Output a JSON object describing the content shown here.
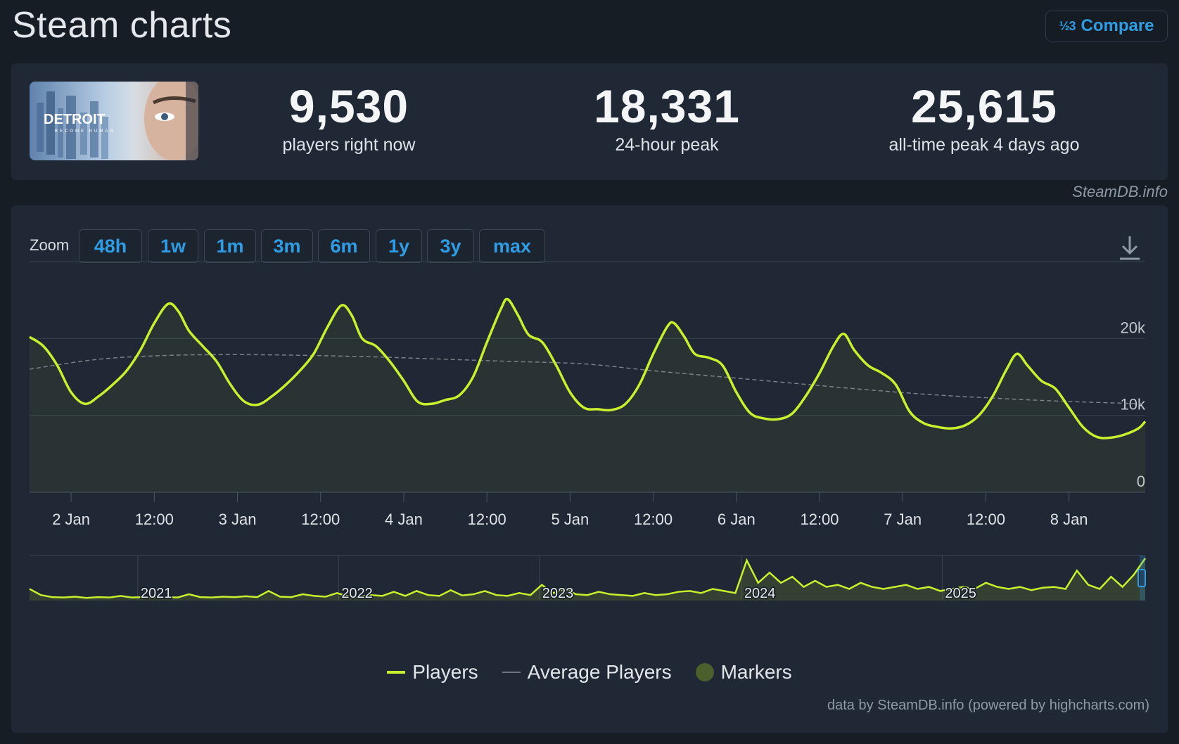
{
  "page": {
    "title": "Steam charts",
    "compare_label": "Compare",
    "compare_icon": "fraction-compare-icon",
    "compare_icon_text": "½3"
  },
  "game": {
    "logo_text": "DETROIT",
    "logo_subtext": "BECOME HUMAN"
  },
  "stats": [
    {
      "value": "9,530",
      "label": "players right now"
    },
    {
      "value": "18,331",
      "label": "24-hour peak"
    },
    {
      "value": "25,615",
      "label": "all-time peak 4 days ago"
    }
  ],
  "credit_top": "SteamDB.info",
  "zoom": {
    "label": "Zoom",
    "options": [
      "48h",
      "1w",
      "1m",
      "3m",
      "6m",
      "1y",
      "3y",
      "max"
    ]
  },
  "legend": [
    {
      "label": "Players",
      "color": "#c8f02c"
    },
    {
      "label": "Average Players",
      "color": "#8f979f"
    },
    {
      "label": "Markers",
      "color": "#4a5f2c"
    }
  ],
  "credit_bottom": "data by SteamDB.info (powered by highcharts.com)",
  "colors": {
    "accent": "#2f9de4",
    "players_line": "#c8f02c",
    "average_line": "#8f979f",
    "background": "#171d25",
    "panel": "#1f2834"
  },
  "chart_data": {
    "type": "line",
    "x_unit": "hours since 1 Jan 18:00",
    "x_range": [
      0,
      161
    ],
    "ylim": [
      0,
      30000
    ],
    "y_ticks": [
      0,
      10000,
      20000
    ],
    "y_tick_labels": [
      "0",
      "10k",
      "20k"
    ],
    "x_tick_labels": [
      {
        "x": 6,
        "label": "2 Jan"
      },
      {
        "x": 18,
        "label": "12:00"
      },
      {
        "x": 30,
        "label": "3 Jan"
      },
      {
        "x": 42,
        "label": "12:00"
      },
      {
        "x": 54,
        "label": "4 Jan"
      },
      {
        "x": 66,
        "label": "12:00"
      },
      {
        "x": 78,
        "label": "5 Jan"
      },
      {
        "x": 90,
        "label": "12:00"
      },
      {
        "x": 102,
        "label": "6 Jan"
      },
      {
        "x": 114,
        "label": "12:00"
      },
      {
        "x": 126,
        "label": "7 Jan"
      },
      {
        "x": 138,
        "label": "12:00"
      },
      {
        "x": 150,
        "label": "8 Jan"
      }
    ],
    "series": [
      {
        "name": "Players",
        "points": [
          [
            0,
            20200
          ],
          [
            2,
            19000
          ],
          [
            4,
            16500
          ],
          [
            6,
            13000
          ],
          [
            8,
            11500
          ],
          [
            10,
            12500
          ],
          [
            12,
            14000
          ],
          [
            14,
            15800
          ],
          [
            16,
            18500
          ],
          [
            18,
            22000
          ],
          [
            20,
            24500
          ],
          [
            21.5,
            23500
          ],
          [
            23,
            21000
          ],
          [
            25,
            19000
          ],
          [
            27,
            17000
          ],
          [
            29,
            14000
          ],
          [
            31,
            11800
          ],
          [
            33,
            11400
          ],
          [
            35,
            12500
          ],
          [
            37,
            14000
          ],
          [
            39,
            15800
          ],
          [
            41,
            18000
          ],
          [
            43,
            21500
          ],
          [
            45,
            24300
          ],
          [
            46.5,
            23000
          ],
          [
            48,
            20000
          ],
          [
            50,
            19000
          ],
          [
            52,
            17000
          ],
          [
            54,
            14500
          ],
          [
            56,
            11800
          ],
          [
            58,
            11500
          ],
          [
            60,
            12000
          ],
          [
            62,
            12600
          ],
          [
            64,
            15000
          ],
          [
            66,
            19500
          ],
          [
            68,
            23800
          ],
          [
            69,
            25100
          ],
          [
            70.5,
            23000
          ],
          [
            72,
            20500
          ],
          [
            74,
            19500
          ],
          [
            76,
            16500
          ],
          [
            78,
            13000
          ],
          [
            80,
            11000
          ],
          [
            82,
            10800
          ],
          [
            84,
            10700
          ],
          [
            86,
            11500
          ],
          [
            88,
            14000
          ],
          [
            90,
            18000
          ],
          [
            92,
            21500
          ],
          [
            93,
            22000
          ],
          [
            94.5,
            20200
          ],
          [
            96,
            18000
          ],
          [
            98,
            17500
          ],
          [
            100,
            16500
          ],
          [
            102,
            13000
          ],
          [
            104,
            10300
          ],
          [
            106,
            9600
          ],
          [
            108,
            9500
          ],
          [
            110,
            10200
          ],
          [
            112,
            12500
          ],
          [
            114,
            15500
          ],
          [
            116,
            19000
          ],
          [
            117.5,
            20600
          ],
          [
            119,
            18500
          ],
          [
            121,
            16500
          ],
          [
            123,
            15500
          ],
          [
            125,
            14000
          ],
          [
            127,
            10500
          ],
          [
            129,
            9000
          ],
          [
            131,
            8500
          ],
          [
            133,
            8300
          ],
          [
            135,
            8700
          ],
          [
            137,
            10000
          ],
          [
            139,
            12500
          ],
          [
            141,
            16000
          ],
          [
            142.5,
            18000
          ],
          [
            144,
            16500
          ],
          [
            146,
            14500
          ],
          [
            148,
            13500
          ],
          [
            150,
            11000
          ],
          [
            152,
            8500
          ],
          [
            154,
            7200
          ],
          [
            156,
            7100
          ],
          [
            158,
            7500
          ],
          [
            160,
            8300
          ],
          [
            161,
            9200
          ]
        ]
      },
      {
        "name": "Average Players",
        "points": [
          [
            0,
            16000
          ],
          [
            10,
            17300
          ],
          [
            20,
            17800
          ],
          [
            30,
            17900
          ],
          [
            40,
            17800
          ],
          [
            50,
            17600
          ],
          [
            60,
            17300
          ],
          [
            70,
            17000
          ],
          [
            80,
            16700
          ],
          [
            90,
            15800
          ],
          [
            100,
            15000
          ],
          [
            110,
            14200
          ],
          [
            120,
            13400
          ],
          [
            130,
            12700
          ],
          [
            140,
            12200
          ],
          [
            150,
            11800
          ],
          [
            161,
            11500
          ]
        ]
      }
    ],
    "navigator": {
      "year_labels": [
        "2021",
        "2022",
        "2023",
        "2024",
        "2025"
      ],
      "year_positions": [
        0.097,
        0.277,
        0.457,
        0.638,
        0.818
      ],
      "normalized_values": [
        0.25,
        0.1,
        0.05,
        0.04,
        0.06,
        0.03,
        0.05,
        0.04,
        0.08,
        0.04,
        0.05,
        0.06,
        0.05,
        0.04,
        0.12,
        0.05,
        0.04,
        0.06,
        0.05,
        0.07,
        0.05,
        0.2,
        0.06,
        0.05,
        0.12,
        0.08,
        0.06,
        0.15,
        0.07,
        0.06,
        0.1,
        0.08,
        0.18,
        0.08,
        0.2,
        0.1,
        0.08,
        0.22,
        0.09,
        0.12,
        0.2,
        0.1,
        0.08,
        0.15,
        0.1,
        0.35,
        0.15,
        0.25,
        0.12,
        0.1,
        0.18,
        0.12,
        0.1,
        0.08,
        0.15,
        0.1,
        0.12,
        0.18,
        0.2,
        0.15,
        0.25,
        0.2,
        0.15,
        0.95,
        0.4,
        0.65,
        0.4,
        0.55,
        0.3,
        0.45,
        0.3,
        0.35,
        0.25,
        0.4,
        0.3,
        0.25,
        0.3,
        0.35,
        0.25,
        0.3,
        0.2,
        0.25,
        0.3,
        0.25,
        0.4,
        0.3,
        0.25,
        0.3,
        0.22,
        0.28,
        0.3,
        0.25,
        0.7,
        0.35,
        0.25,
        0.55,
        0.3,
        0.6,
        1.0
      ]
    }
  }
}
